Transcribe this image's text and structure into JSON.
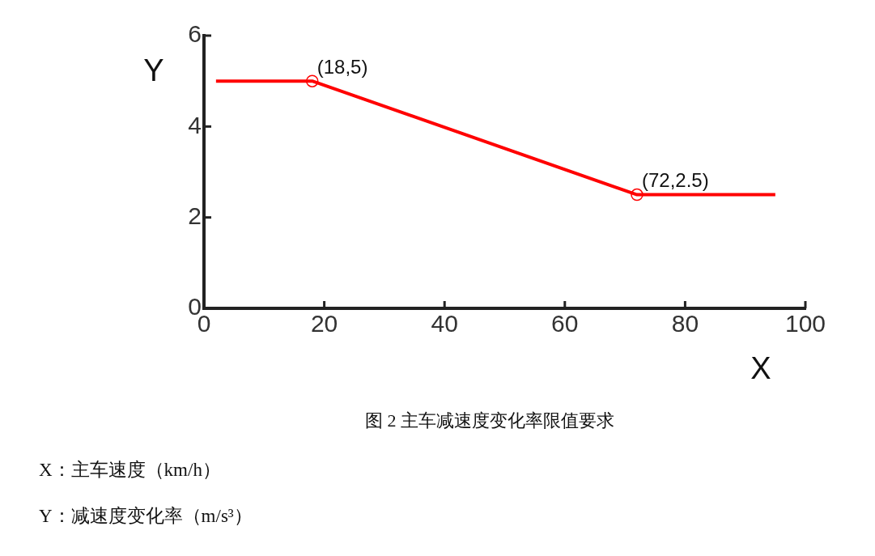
{
  "chart_data": {
    "type": "line",
    "xlabel": "X",
    "ylabel": "Y",
    "xlim": [
      0,
      100
    ],
    "xticks": [
      0,
      20,
      40,
      60,
      80,
      100
    ],
    "ylim": [
      0,
      6
    ],
    "yticks": [
      0,
      2,
      4,
      6
    ],
    "grid": false,
    "legend": false,
    "series": [
      {
        "color": "#ff0000",
        "x": [
          2,
          18,
          72,
          95
        ],
        "values": [
          5,
          5,
          2.5,
          2.5
        ],
        "marker": "none"
      },
      {
        "type": "scatter",
        "color": "#ff0000",
        "x": [
          18,
          72
        ],
        "values": [
          5,
          2.5
        ],
        "marker": "circle"
      }
    ],
    "annotations": [
      {
        "text": "(18,5)",
        "x": 18,
        "y": 5
      },
      {
        "text": "(72,2.5)",
        "x": 72,
        "y": 2.5
      },
      "图 2  主车减速度变化率限值要求",
      "X：主车速度（km/h）",
      "Y：减速度变化率（m/s³）"
    ]
  }
}
